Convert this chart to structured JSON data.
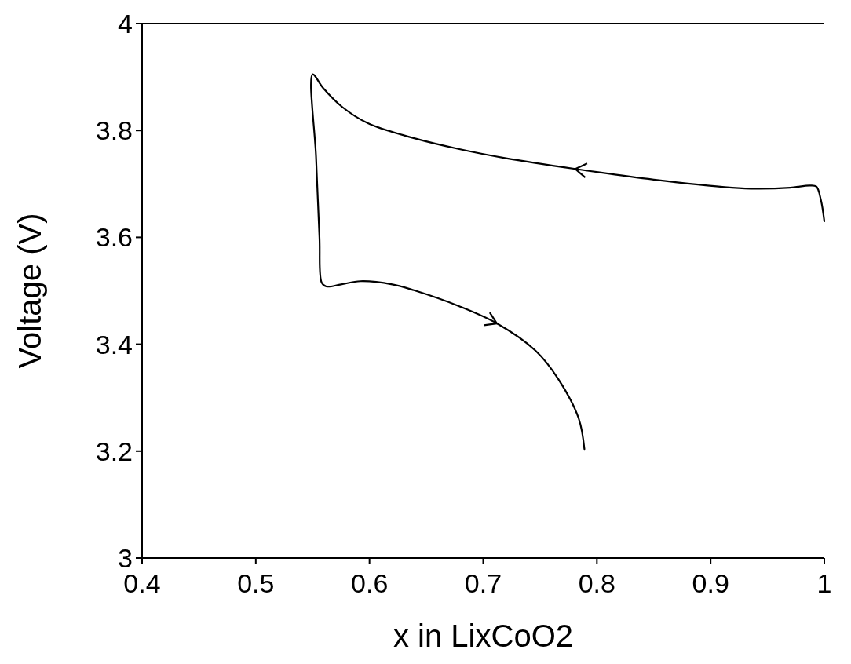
{
  "chart_data": {
    "type": "line",
    "xlabel": "x in LixCoO2",
    "ylabel": "Voltage (V)",
    "xlim": [
      0.4,
      1.0
    ],
    "xticks": [
      0.4,
      0.5,
      0.6,
      0.7,
      0.8,
      0.9,
      1
    ],
    "ylim": [
      3,
      4
    ],
    "yticks": [
      3,
      3.2,
      3.4,
      3.6,
      3.8,
      4
    ],
    "grid": false,
    "marker": "none",
    "line_style": "solid",
    "series": [
      {
        "color": "#000000",
        "x": [
          1.0,
          0.997,
          0.993,
          0.987,
          0.97,
          0.94,
          0.919,
          0.85,
          0.781,
          0.72,
          0.679,
          0.64,
          0.599,
          0.576,
          0.559,
          0.55,
          0.553,
          0.556,
          0.558,
          0.562,
          0.575,
          0.592,
          0.62,
          0.639,
          0.679,
          0.712,
          0.746,
          0.766,
          0.784,
          0.789
        ],
        "values": [
          3.63,
          3.67,
          3.695,
          3.697,
          3.693,
          3.691,
          3.693,
          3.708,
          3.728,
          3.748,
          3.765,
          3.785,
          3.813,
          3.844,
          3.88,
          3.905,
          3.75,
          3.6,
          3.515,
          3.508,
          3.512,
          3.518,
          3.512,
          3.501,
          3.471,
          3.439,
          3.388,
          3.335,
          3.261,
          3.204
        ]
      }
    ]
  }
}
